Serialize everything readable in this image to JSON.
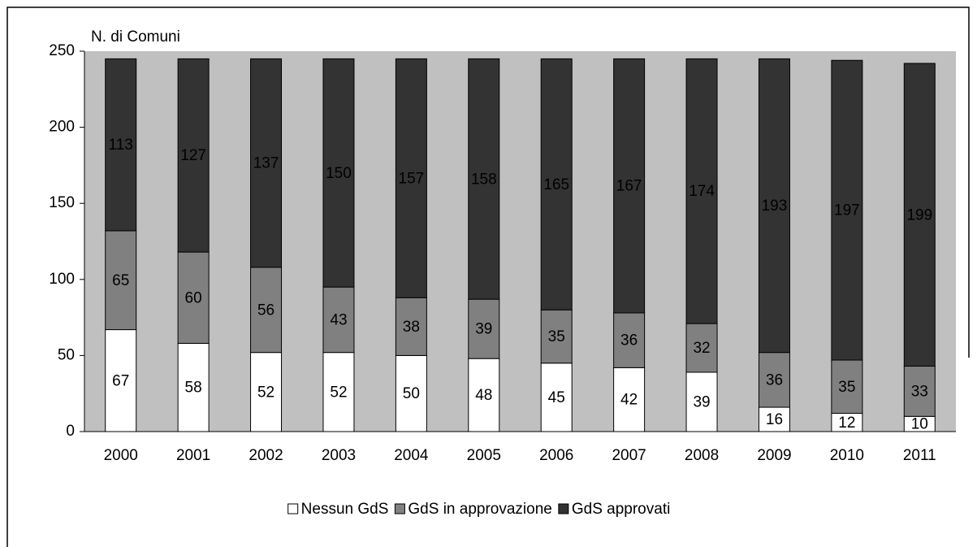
{
  "chart_data": {
    "type": "stacked_bar",
    "y_label": "N. di Comuni",
    "categories": [
      "2000",
      "2001",
      "2002",
      "2003",
      "2004",
      "2005",
      "2006",
      "2007",
      "2008",
      "2009",
      "2010",
      "2011"
    ],
    "series": [
      {
        "name": "Nessun GdS",
        "color": "#ffffff",
        "label_color": "#000000",
        "values": [
          67,
          58,
          52,
          52,
          50,
          48,
          45,
          42,
          39,
          16,
          12,
          10
        ]
      },
      {
        "name": "GdS in approvazione",
        "color": "#808080",
        "label_color": "#ffffff",
        "values": [
          65,
          60,
          56,
          43,
          38,
          39,
          35,
          36,
          32,
          36,
          35,
          33
        ]
      },
      {
        "name": "GdS approvati",
        "color": "#333333",
        "label_color": "#ffffff",
        "values": [
          113,
          127,
          137,
          150,
          157,
          158,
          165,
          167,
          174,
          193,
          197,
          199
        ]
      }
    ],
    "ylim": [
      0,
      250
    ],
    "yticks": [
      0,
      50,
      100,
      150,
      200,
      250
    ],
    "plot_background": "#c0c0c0",
    "legend": "bottom"
  }
}
